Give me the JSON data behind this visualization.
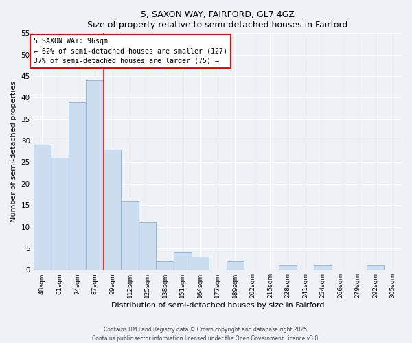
{
  "title": "5, SAXON WAY, FAIRFORD, GL7 4GZ",
  "subtitle": "Size of property relative to semi-detached houses in Fairford",
  "xlabel": "Distribution of semi-detached houses by size in Fairford",
  "ylabel": "Number of semi-detached properties",
  "categories": [
    "48sqm",
    "61sqm",
    "74sqm",
    "87sqm",
    "99sqm",
    "112sqm",
    "125sqm",
    "138sqm",
    "151sqm",
    "164sqm",
    "177sqm",
    "189sqm",
    "202sqm",
    "215sqm",
    "228sqm",
    "241sqm",
    "254sqm",
    "266sqm",
    "279sqm",
    "292sqm",
    "305sqm"
  ],
  "values": [
    29,
    26,
    39,
    44,
    28,
    16,
    11,
    2,
    4,
    3,
    0,
    2,
    0,
    0,
    1,
    0,
    1,
    0,
    0,
    1,
    0
  ],
  "bar_color": "#ccddf0",
  "bar_edge_color": "#8ab0d0",
  "property_line_x": 3.5,
  "annotation_text_line1": "5 SAXON WAY: 96sqm",
  "annotation_text_line2": "← 62% of semi-detached houses are smaller (127)",
  "annotation_text_line3": "37% of semi-detached houses are larger (75) →",
  "ylim": [
    0,
    55
  ],
  "yticks": [
    0,
    5,
    10,
    15,
    20,
    25,
    30,
    35,
    40,
    45,
    50,
    55
  ],
  "background_color": "#eef2f7",
  "grid_color": "#ffffff",
  "footer_line1": "Contains HM Land Registry data © Crown copyright and database right 2025.",
  "footer_line2": "Contains public sector information licensed under the Open Government Licence v3.0."
}
